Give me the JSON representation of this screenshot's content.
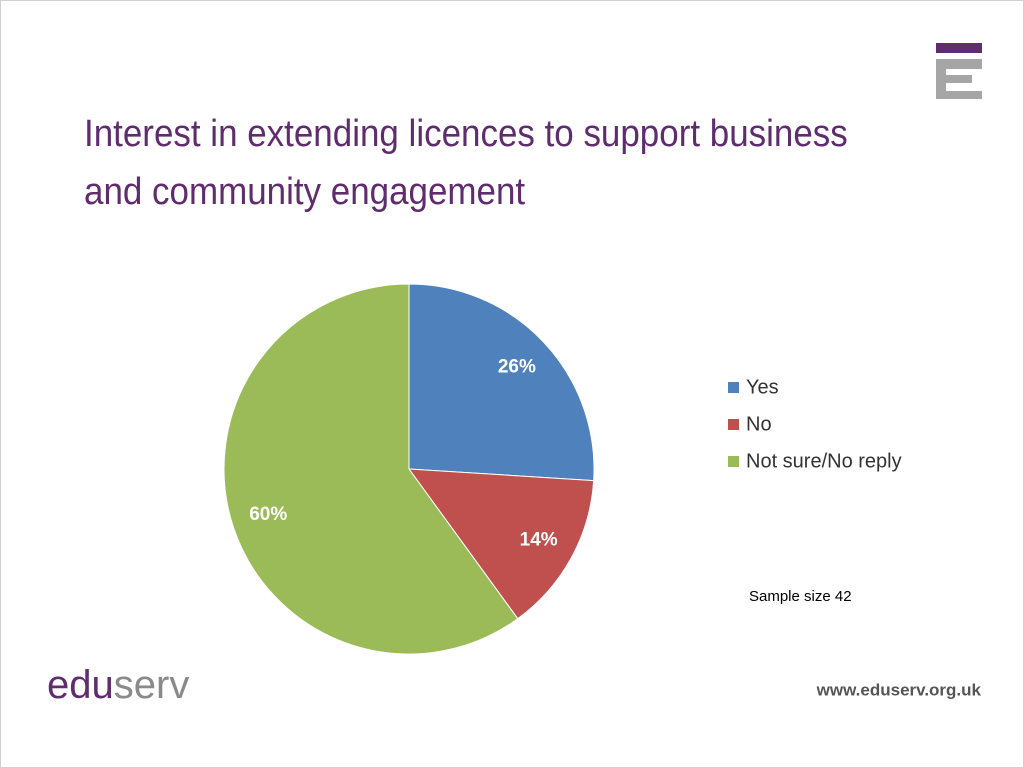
{
  "chart_data": {
    "type": "pie",
    "title": "Interest in extending licences to support business and community engagement",
    "categories": [
      "Yes",
      "No",
      "Not sure/No reply"
    ],
    "values": [
      26,
      14,
      60
    ],
    "value_labels": [
      "26%",
      "14%",
      "60%"
    ],
    "colors": [
      "#4f81bd",
      "#c0504d",
      "#9bbb59"
    ],
    "legend": "right",
    "annotation": "Sample size 42"
  },
  "footer": {
    "logo": [
      "edu",
      "serv"
    ],
    "url": "www.eduserv.org.uk"
  }
}
